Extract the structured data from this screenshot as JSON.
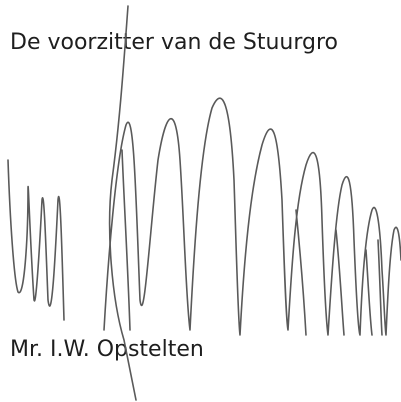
{
  "text": {
    "heading": "De voorzitter van de Stuurgro",
    "name": "Mr. I.W. Opstelten"
  }
}
